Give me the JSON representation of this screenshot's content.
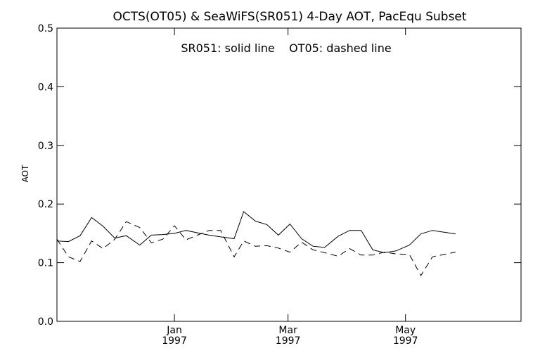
{
  "chart_data": {
    "type": "line",
    "title": "OCTS(OT05) & SeaWiFS(SR051) 4-Day AOT, PacEqu Subset",
    "annotation": "SR051: solid line    OT05: dashed line",
    "xlabel": "",
    "ylabel": "AOT",
    "ylim": [
      0.0,
      0.5
    ],
    "yticks": [
      "0.0",
      "0.1",
      "0.2",
      "0.3",
      "0.4",
      "0.5"
    ],
    "xlim": [
      "1996-11-01",
      "1997-06-30"
    ],
    "xticks": [
      {
        "date": "1997-01-01",
        "line1": "Jan",
        "line2": "1997"
      },
      {
        "date": "1997-03-01",
        "line1": "Mar",
        "line2": "1997"
      },
      {
        "date": "1997-05-01",
        "line1": "May",
        "line2": "1997"
      }
    ],
    "grid": false,
    "series": [
      {
        "name": "SR051",
        "style": "solid",
        "color": "#000000",
        "points": [
          [
            "1996-11-01",
            0.137
          ],
          [
            "1996-11-07",
            0.136
          ],
          [
            "1996-11-13",
            0.146
          ],
          [
            "1996-11-19",
            0.177
          ],
          [
            "1996-11-25",
            0.162
          ],
          [
            "1996-12-01",
            0.142
          ],
          [
            "1996-12-07",
            0.146
          ],
          [
            "1996-12-14",
            0.13
          ],
          [
            "1996-12-20",
            0.147
          ],
          [
            "1996-12-26",
            0.148
          ],
          [
            "1997-01-01",
            0.15
          ],
          [
            "1997-01-07",
            0.155
          ],
          [
            "1997-01-13",
            0.151
          ],
          [
            "1997-01-19",
            0.147
          ],
          [
            "1997-01-25",
            0.144
          ],
          [
            "1997-02-01",
            0.141
          ],
          [
            "1997-02-06",
            0.187
          ],
          [
            "1997-02-12",
            0.171
          ],
          [
            "1997-02-18",
            0.165
          ],
          [
            "1997-02-24",
            0.147
          ],
          [
            "1997-03-02",
            0.166
          ],
          [
            "1997-03-08",
            0.141
          ],
          [
            "1997-03-14",
            0.128
          ],
          [
            "1997-03-20",
            0.126
          ],
          [
            "1997-03-27",
            0.145
          ],
          [
            "1997-04-02",
            0.155
          ],
          [
            "1997-04-08",
            0.155
          ],
          [
            "1997-04-14",
            0.122
          ],
          [
            "1997-04-20",
            0.117
          ],
          [
            "1997-04-26",
            0.12
          ],
          [
            "1997-05-03",
            0.13
          ],
          [
            "1997-05-09",
            0.149
          ],
          [
            "1997-05-15",
            0.155
          ],
          [
            "1997-05-21",
            0.152
          ],
          [
            "1997-05-27",
            0.149
          ]
        ]
      },
      {
        "name": "OT05",
        "style": "dashed",
        "color": "#000000",
        "points": [
          [
            "1996-11-01",
            0.14
          ],
          [
            "1996-11-07",
            0.11
          ],
          [
            "1996-11-13",
            0.102
          ],
          [
            "1996-11-19",
            0.137
          ],
          [
            "1996-11-25",
            0.124
          ],
          [
            "1996-12-01",
            0.14
          ],
          [
            "1996-12-07",
            0.17
          ],
          [
            "1996-12-14",
            0.16
          ],
          [
            "1996-12-20",
            0.134
          ],
          [
            "1996-12-26",
            0.14
          ],
          [
            "1997-01-01",
            0.163
          ],
          [
            "1997-01-07",
            0.139
          ],
          [
            "1997-01-13",
            0.147
          ],
          [
            "1997-01-19",
            0.155
          ],
          [
            "1997-01-25",
            0.155
          ],
          [
            "1997-02-01",
            0.11
          ],
          [
            "1997-02-06",
            0.137
          ],
          [
            "1997-02-12",
            0.128
          ],
          [
            "1997-02-18",
            0.129
          ],
          [
            "1997-02-24",
            0.125
          ],
          [
            "1997-03-02",
            0.118
          ],
          [
            "1997-03-08",
            0.135
          ],
          [
            "1997-03-14",
            0.122
          ],
          [
            "1997-03-20",
            0.117
          ],
          [
            "1997-03-27",
            0.111
          ],
          [
            "1997-04-02",
            0.124
          ],
          [
            "1997-04-08",
            0.113
          ],
          [
            "1997-04-14",
            0.113
          ],
          [
            "1997-04-20",
            0.118
          ],
          [
            "1997-04-26",
            0.115
          ],
          [
            "1997-05-03",
            0.114
          ],
          [
            "1997-05-09",
            0.078
          ],
          [
            "1997-05-15",
            0.11
          ],
          [
            "1997-05-21",
            0.114
          ],
          [
            "1997-05-27",
            0.118
          ]
        ]
      }
    ]
  }
}
